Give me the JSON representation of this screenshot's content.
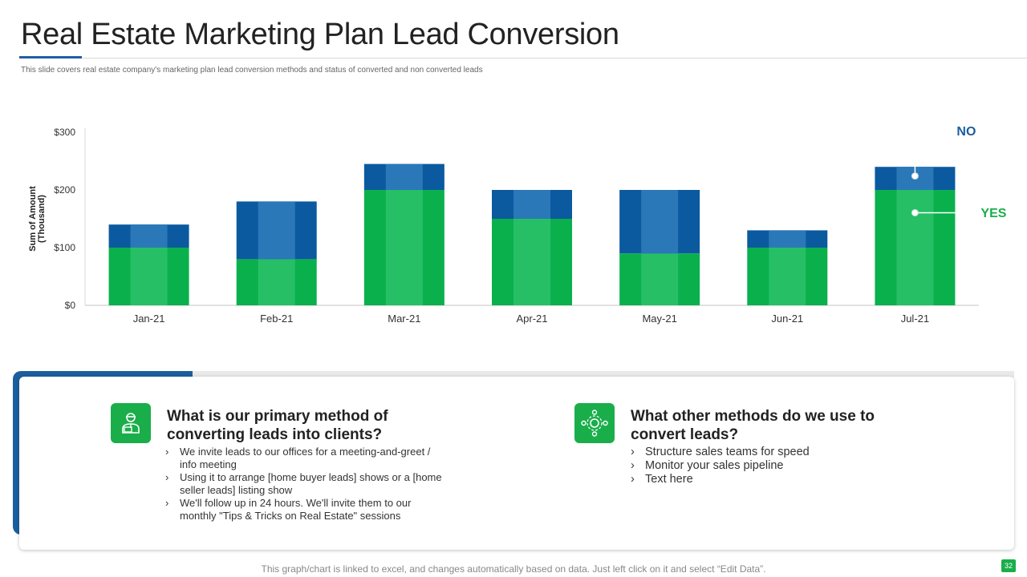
{
  "slide": {
    "title": "Real Estate Marketing Plan Lead Conversion",
    "subtitle": "This slide covers real estate company's marketing plan lead  conversion methods and status of converted and non converted leads",
    "footer": "This graph/chart is linked to excel,  and changes automatically based on data. Just left click on it and select “Edit Data”.",
    "page_number": "32"
  },
  "chart_data": {
    "type": "bar",
    "stacked": true,
    "categories": [
      "Jan-21",
      "Feb-21",
      "Mar-21",
      "Apr-21",
      "May-21",
      "Jun-21",
      "Jul-21"
    ],
    "series": [
      {
        "name": "YES",
        "color": "#0ab04c",
        "values": [
          100,
          80,
          200,
          150,
          90,
          100,
          200
        ]
      },
      {
        "name": "NO",
        "color": "#0b5aa0",
        "values": [
          40,
          100,
          45,
          50,
          110,
          30,
          40
        ]
      }
    ],
    "ylabel": "Sum of Amount\n(Thousand)",
    "ylim": [
      0,
      300
    ],
    "yticks": [
      "$0",
      "$100",
      "$200",
      "$300"
    ],
    "legend": [
      {
        "label": "NO",
        "color": "#1b5e9e"
      },
      {
        "label": "YES",
        "color": "#1aae4b"
      }
    ]
  },
  "left_block": {
    "icon": "agent-icon",
    "title_line1": "What is our primary method of",
    "title_line2": "converting leads into clients?",
    "bullets": [
      {
        "l1": "We invite leads to our offices for a meeting-and-greet  /",
        "l2": "info meeting"
      },
      {
        "l1": "Using it to arrange  [home buyer leads] shows or a [home",
        "l2": "seller leads] listing show"
      },
      {
        "l1": "We'll follow  up in 24 hours.  We'll invite  them to our",
        "l2": "monthly \"Tips & Tricks on Real Estate\" sessions"
      }
    ]
  },
  "right_block": {
    "icon": "network-icon",
    "title_line1": "What other methods do we use to",
    "title_line2": "convert leads?",
    "bullets": [
      "Structure sales teams for speed",
      "Monitor your sales pipeline",
      "Text here"
    ]
  }
}
